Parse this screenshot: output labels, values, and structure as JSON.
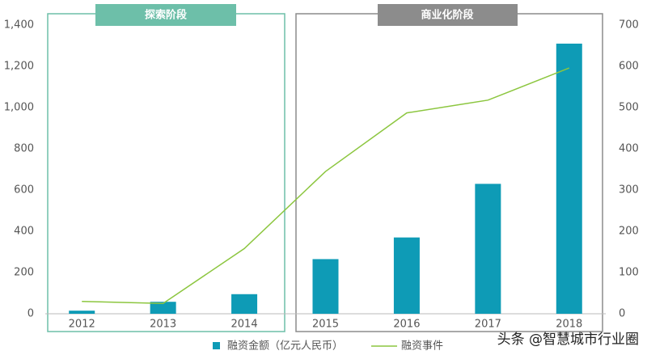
{
  "chart_data": {
    "type": "bar-line",
    "annotations": [
      "探索阶段",
      "商业化阶段"
    ],
    "watermark": "头条 @智慧城市行业圈",
    "categories": [
      "2012",
      "2013",
      "2014",
      "2015",
      "2016",
      "2017",
      "2018"
    ],
    "series": [
      {
        "name": "融资金额（亿元人民币）",
        "type": "bar",
        "color": "#0e9bb6",
        "values": [
          15,
          58,
          95,
          265,
          370,
          630,
          1310
        ]
      },
      {
        "name": "融资事件",
        "type": "line",
        "color": "#8cc63f",
        "axis": "y2",
        "values": [
          30,
          25,
          158,
          345,
          487,
          518,
          596
        ]
      }
    ],
    "ylim": [
      0,
      1400
    ],
    "yticks": [
      0,
      200,
      400,
      600,
      800,
      {
        "value": 1000,
        "label": "1,000"
      },
      {
        "value": 1200,
        "label": "1,200"
      },
      {
        "value": 1400,
        "label": "1,400"
      }
    ],
    "y2lim": [
      0,
      700
    ],
    "y2ticks": [
      0,
      100,
      200,
      300,
      400,
      500,
      600,
      700
    ]
  }
}
